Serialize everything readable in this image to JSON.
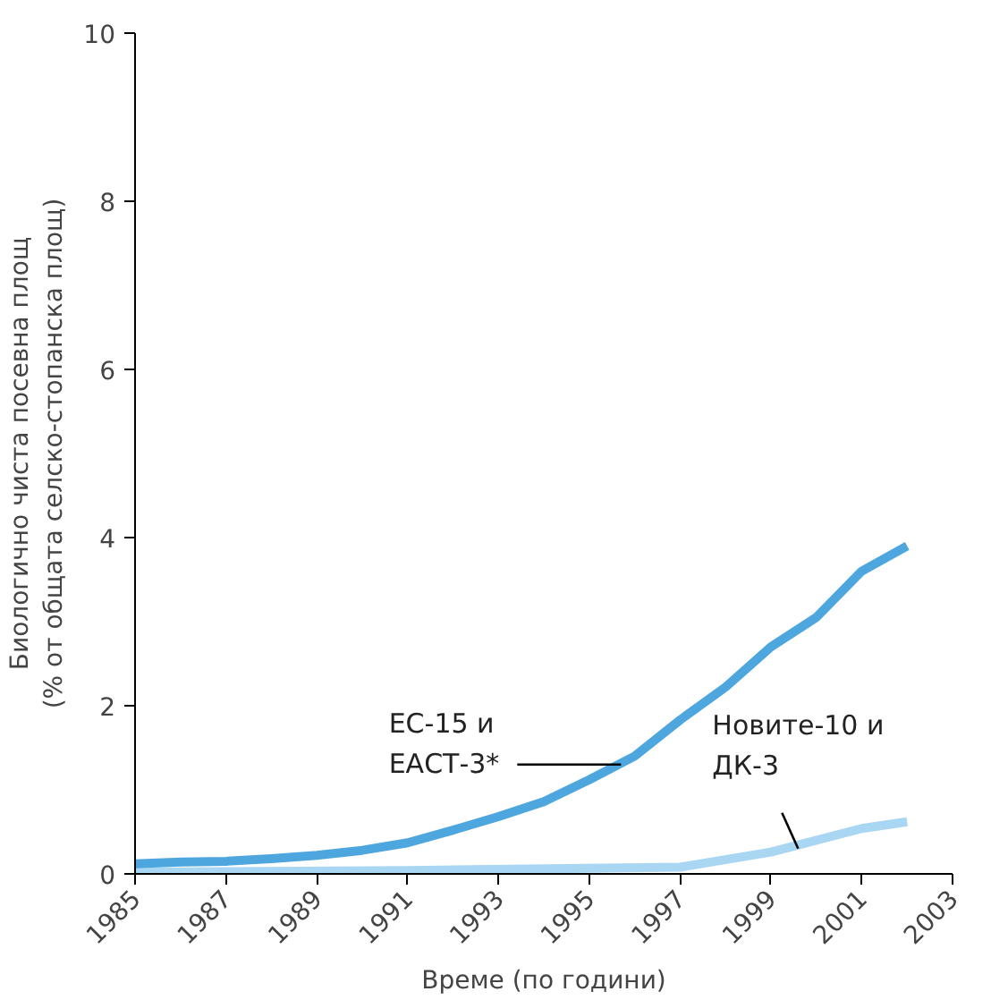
{
  "chart_data": {
    "type": "line",
    "xlabel": "Време (по години)",
    "ylabel": "Биологично чиста посевна площ\n(% от общата селско-стопанска площ)",
    "x": [
      1985,
      1986,
      1987,
      1988,
      1989,
      1990,
      1991,
      1992,
      1993,
      1994,
      1995,
      1996,
      1997,
      1998,
      1999,
      2000,
      2001,
      2002
    ],
    "series": [
      {
        "color": "#4ea6df",
        "values": [
          0.12,
          0.14,
          0.15,
          0.18,
          0.22,
          0.28,
          0.37,
          0.52,
          0.68,
          0.86,
          1.12,
          1.4,
          1.83,
          2.22,
          2.7,
          3.05,
          3.6,
          3.9
        ]
      },
      {
        "color": "#a9d6f3",
        "x": [
          1985,
          1991,
          1997,
          1999,
          2001,
          2002
        ],
        "values": [
          0.02,
          0.04,
          0.08,
          0.26,
          0.54,
          0.62
        ]
      }
    ],
    "annotations": [
      {
        "text": "ЕС-15 и\nЕАСТ-3*",
        "x": 1995.7,
        "y": 1.3
      },
      {
        "text": "Новите-10 и\nДК-3",
        "x": 1999.6,
        "y": 0.3
      }
    ],
    "xlim": [
      1985,
      2003
    ],
    "ylim": [
      0,
      10
    ],
    "xticks": [
      1985,
      1987,
      1989,
      1991,
      1993,
      1995,
      1997,
      1999,
      2001,
      2003
    ],
    "yticks": [
      0,
      2,
      4,
      6,
      8,
      10
    ],
    "grid": false,
    "line_style": "solid",
    "marker": "none"
  }
}
